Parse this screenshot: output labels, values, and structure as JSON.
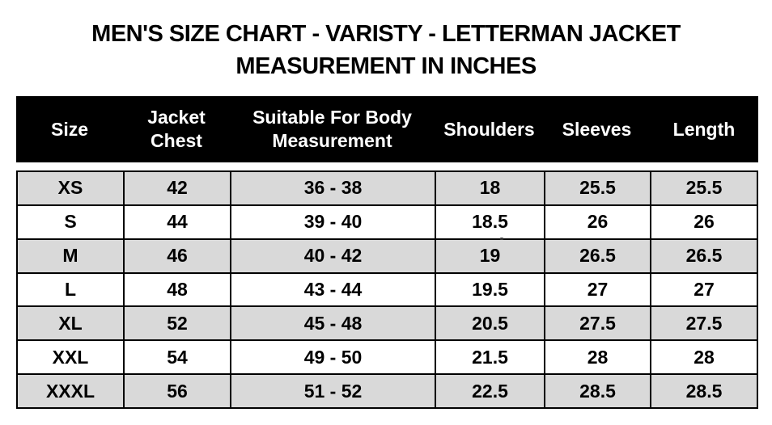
{
  "title": {
    "line1": "MEN'S SIZE CHART - VARISTY - LETTERMAN JACKET",
    "line2": "MEASUREMENT IN INCHES"
  },
  "colors": {
    "header_bg": "#000000",
    "header_text": "#ffffff",
    "row_alt_bg": "#d9d9d9",
    "row_bg": "#ffffff",
    "border": "#000000"
  },
  "chart_data": {
    "type": "table",
    "title": "MEN'S SIZE CHART - VARISTY - LETTERMAN JACKET MEASUREMENT IN INCHES",
    "units": "inches",
    "columns": [
      "Size",
      "Jacket Chest",
      "Suitable For Body Measurement",
      "Shoulders",
      "Sleeves",
      "Length"
    ],
    "rows": [
      [
        "XS",
        "42",
        "36 - 38",
        "18",
        "25.5",
        "25.5"
      ],
      [
        "S",
        "44",
        "39 - 40",
        "18.5",
        "26",
        "26"
      ],
      [
        "M",
        "46",
        "40 - 42",
        "19",
        "26.5",
        "26.5"
      ],
      [
        "L",
        "48",
        "43 - 44",
        "19.5",
        "27",
        "27"
      ],
      [
        "XL",
        "52",
        "45 - 48",
        "20.5",
        "27.5",
        "27.5"
      ],
      [
        "XXL",
        "54",
        "49 - 50",
        "21.5",
        "28",
        "28"
      ],
      [
        "XXXL",
        "56",
        "51 - 52",
        "22.5",
        "28.5",
        "28.5"
      ]
    ]
  }
}
